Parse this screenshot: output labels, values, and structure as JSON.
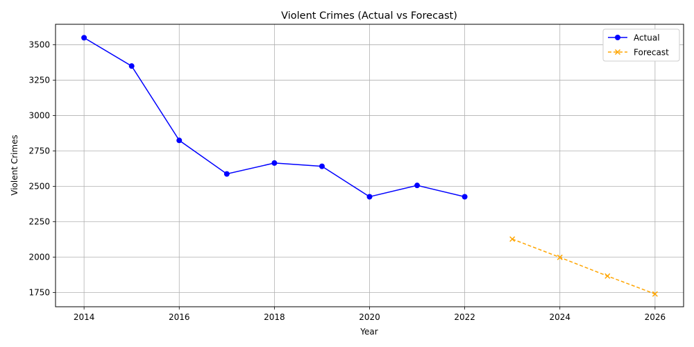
{
  "chart_data": {
    "type": "line",
    "title": "Violent Crimes (Actual vs Forecast)",
    "xlabel": "Year",
    "ylabel": "Violent Crimes",
    "xlim": [
      2013.4,
      2026.6
    ],
    "ylim": [
      1650,
      3645
    ],
    "xticks": [
      2014,
      2016,
      2018,
      2020,
      2022,
      2024,
      2026
    ],
    "yticks": [
      1750,
      2000,
      2250,
      2500,
      2750,
      3000,
      3250,
      3500
    ],
    "grid": true,
    "legend_position": "top-right",
    "series": [
      {
        "name": "Actual",
        "color": "#0000ff",
        "line_style": "solid",
        "marker": "circle",
        "x": [
          2014,
          2015,
          2016,
          2017,
          2018,
          2019,
          2020,
          2021,
          2022
        ],
        "y": [
          3550,
          3350,
          2825,
          2588,
          2665,
          2642,
          2427,
          2507,
          2427
        ]
      },
      {
        "name": "Forecast",
        "color": "#ffa500",
        "line_style": "dashed",
        "marker": "x",
        "x": [
          2023,
          2024,
          2025,
          2026
        ],
        "y": [
          2128,
          1999,
          1867,
          1740
        ]
      }
    ]
  }
}
